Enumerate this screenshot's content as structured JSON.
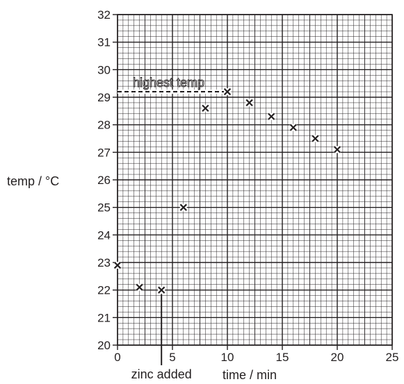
{
  "chart_data": {
    "type": "scatter",
    "xlabel": "time / min",
    "ylabel": "temp / °C",
    "xlim": [
      0,
      25
    ],
    "ylim": [
      20,
      32
    ],
    "x_ticks": [
      0,
      5,
      10,
      15,
      20,
      25
    ],
    "y_ticks": [
      20,
      21,
      22,
      23,
      24,
      25,
      26,
      27,
      28,
      29,
      30,
      31,
      32
    ],
    "grid": true,
    "points": [
      {
        "x": 0,
        "y": 22.9
      },
      {
        "x": 2,
        "y": 22.1
      },
      {
        "x": 4,
        "y": 22.0
      },
      {
        "x": 6,
        "y": 25.0
      },
      {
        "x": 8,
        "y": 28.6
      },
      {
        "x": 10,
        "y": 29.2
      },
      {
        "x": 12,
        "y": 28.8
      },
      {
        "x": 14,
        "y": 28.3
      },
      {
        "x": 16,
        "y": 27.9
      },
      {
        "x": 18,
        "y": 27.5
      },
      {
        "x": 20,
        "y": 27.1
      }
    ],
    "annotations": [
      {
        "label": "highest temp",
        "type": "horizontal-dashed-line",
        "y": 29.2,
        "x_from": 0,
        "x_to": 10
      },
      {
        "label": "zinc added",
        "type": "vertical-line",
        "x": 4,
        "y_to": 22.0
      }
    ],
    "marker_color": "#231f20",
    "grid_color": "#231f20"
  }
}
